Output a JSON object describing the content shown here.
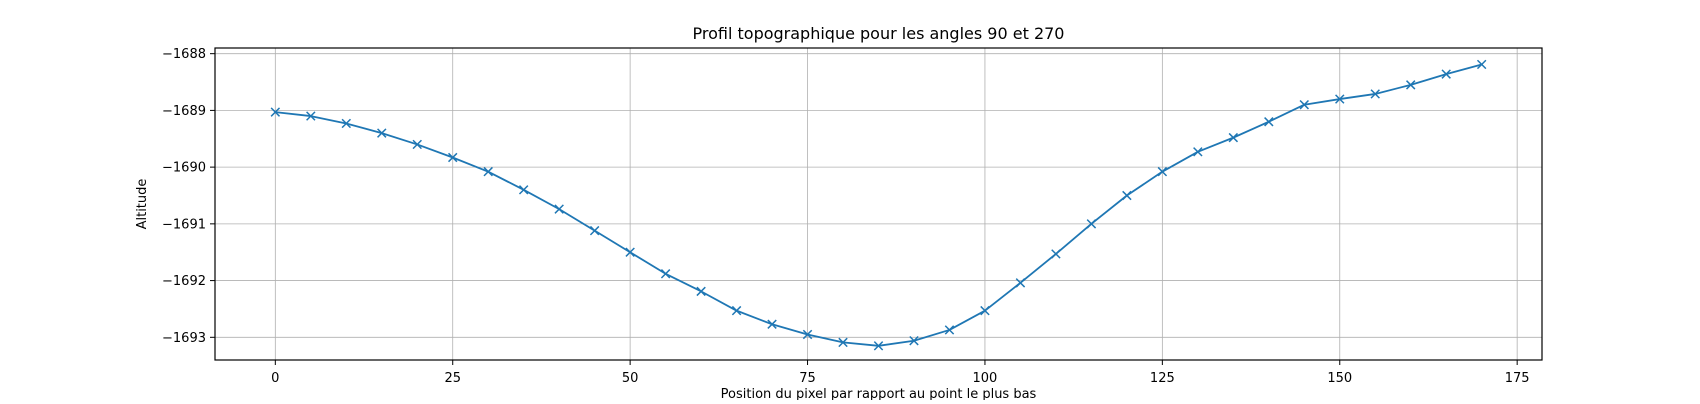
{
  "chart_data": {
    "type": "line",
    "title": "Profil topographique pour les angles 90 et 270",
    "xlabel": "Position du pixel par rapport au point le plus bas",
    "ylabel": "Altitude",
    "xlim": [
      -8.5,
      178.5
    ],
    "ylim": [
      -1693.4,
      -1687.9
    ],
    "x_ticks": [
      0,
      25,
      50,
      75,
      100,
      125,
      150,
      175
    ],
    "x_tick_labels": [
      "0",
      "25",
      "50",
      "75",
      "100",
      "125",
      "150",
      "175"
    ],
    "y_ticks": [
      -1688,
      -1689,
      -1690,
      -1691,
      -1692,
      -1693
    ],
    "y_tick_labels": [
      "−1688",
      "−1689",
      "−1690",
      "−1691",
      "−1692",
      "−1693"
    ],
    "grid": true,
    "marker": "x",
    "series_color": "#1f77b4",
    "series": [
      {
        "x": [
          0,
          5,
          10,
          15,
          20,
          25,
          30,
          35,
          40,
          45,
          50,
          55,
          60,
          65,
          70,
          75,
          80,
          85,
          90,
          95,
          100,
          105,
          110,
          115,
          120,
          125,
          130,
          135,
          140,
          145,
          150,
          155,
          160,
          165,
          170
        ],
        "y": [
          -1689.03,
          -1689.1,
          -1689.23,
          -1689.4,
          -1689.6,
          -1689.83,
          -1690.08,
          -1690.4,
          -1690.74,
          -1691.12,
          -1691.5,
          -1691.88,
          -1692.19,
          -1692.53,
          -1692.77,
          -1692.95,
          -1693.09,
          -1693.15,
          -1693.06,
          -1692.87,
          -1692.53,
          -1692.04,
          -1691.53,
          -1691.0,
          -1690.5,
          -1690.08,
          -1689.73,
          -1689.48,
          -1689.2,
          -1688.9,
          -1688.8,
          -1688.71,
          -1688.55,
          -1688.36,
          -1688.19
        ]
      }
    ]
  }
}
